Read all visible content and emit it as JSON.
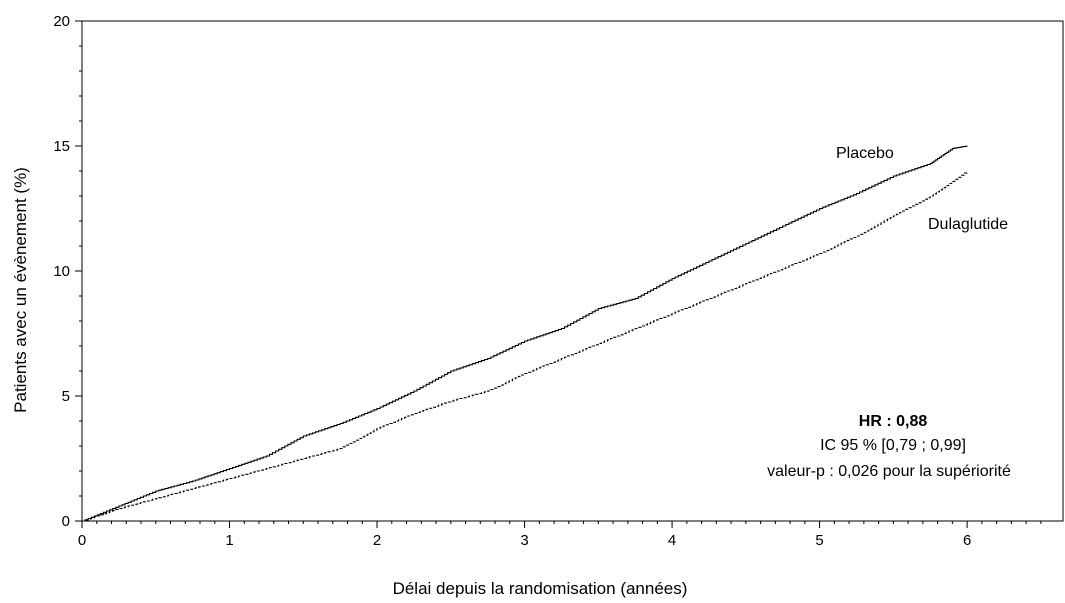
{
  "chart_data": {
    "type": "line",
    "xlabel": "Délai depuis la randomisation (années)",
    "ylabel": "Patients avec un évènement (%)",
    "xlim": [
      0,
      6.65
    ],
    "ylim": [
      0,
      20
    ],
    "x_ticks": [
      "0",
      "1",
      "2",
      "3",
      "4",
      "5",
      "6"
    ],
    "y_ticks": [
      "0",
      "5",
      "10",
      "15",
      "20"
    ],
    "grid": false,
    "series": [
      {
        "name": "Placebo",
        "style": "solid",
        "color": "#000000",
        "x": [
          0,
          0.25,
          0.5,
          0.75,
          1.0,
          1.25,
          1.5,
          1.75,
          2.0,
          2.25,
          2.5,
          2.75,
          3.0,
          3.25,
          3.5,
          3.75,
          4.0,
          4.25,
          4.5,
          4.75,
          5.0,
          5.25,
          5.5,
          5.75,
          5.9,
          6.0
        ],
        "y": [
          0,
          0.6,
          1.2,
          1.6,
          2.1,
          2.6,
          3.4,
          3.9,
          4.5,
          5.2,
          6.0,
          6.5,
          7.2,
          7.7,
          8.5,
          8.9,
          9.7,
          10.4,
          11.1,
          11.8,
          12.5,
          13.1,
          13.8,
          14.3,
          14.9,
          15.0
        ]
      },
      {
        "name": "Dulaglutide",
        "style": "dashed",
        "color": "#000000",
        "x": [
          0,
          0.25,
          0.5,
          0.75,
          1.0,
          1.25,
          1.5,
          1.75,
          2.0,
          2.25,
          2.5,
          2.75,
          3.0,
          3.25,
          3.5,
          3.75,
          4.0,
          4.25,
          4.5,
          4.75,
          5.0,
          5.25,
          5.5,
          5.75,
          6.0
        ],
        "y": [
          0,
          0.5,
          0.9,
          1.3,
          1.7,
          2.1,
          2.5,
          2.9,
          3.7,
          4.3,
          4.8,
          5.2,
          5.9,
          6.5,
          7.1,
          7.7,
          8.3,
          8.9,
          9.5,
          10.1,
          10.7,
          11.4,
          12.2,
          13.0,
          14.0
        ]
      }
    ],
    "annotations": {
      "hr": "HR : 0,88",
      "ci": "IC 95 % [0,79 ; 0,99]",
      "pvalue": "valeur-p : 0,026 pour la supériorité"
    }
  }
}
